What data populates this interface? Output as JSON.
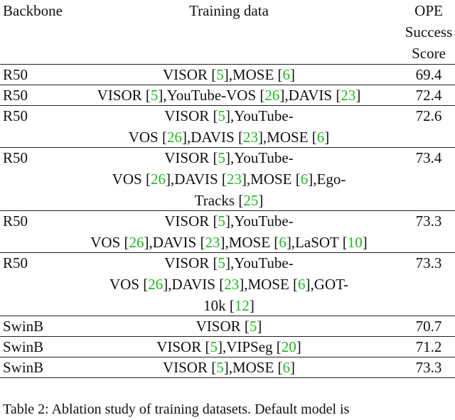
{
  "header": {
    "backbone": "Backbone",
    "training": "Training data",
    "score": [
      "OPE",
      "Success",
      "Score"
    ]
  },
  "rows": [
    {
      "backbone": "R50",
      "training": [
        "VISOR [5],MOSE [6]"
      ],
      "score": 69.4
    },
    {
      "backbone": "R50",
      "training": [
        "VISOR [5],YouTube-VOS [26],DAVIS [23]"
      ],
      "score": 72.4
    },
    {
      "backbone": "R50",
      "training": [
        "VISOR [5],YouTube-",
        "VOS [26],DAVIS [23],MOSE [6]"
      ],
      "score": 72.6
    },
    {
      "backbone": "R50",
      "training": [
        "VISOR [5],YouTube-",
        "VOS [26],DAVIS [23],MOSE [6],Ego-",
        "Tracks [25]"
      ],
      "score": 73.4
    },
    {
      "backbone": "R50",
      "training": [
        "VISOR [5],YouTube-",
        "VOS [26],DAVIS [23],MOSE [6],LaSOT [10]"
      ],
      "score": 73.3
    },
    {
      "backbone": "R50",
      "training": [
        "VISOR [5],YouTube-",
        "VOS [26],DAVIS [23],MOSE [6],GOT-",
        "10k [12]"
      ],
      "score": 73.3
    },
    {
      "backbone": "SwinB",
      "training": [
        "VISOR [5]"
      ],
      "score": 70.7
    },
    {
      "backbone": "SwinB",
      "training": [
        "VISOR [5],VIPSeg [20]"
      ],
      "score": 71.2
    },
    {
      "backbone": "SwinB",
      "training": [
        "VISOR [5],MOSE [6]"
      ],
      "score": 73.3
    }
  ],
  "caption": "Table 2: Ablation study of training datasets. Default model is"
}
